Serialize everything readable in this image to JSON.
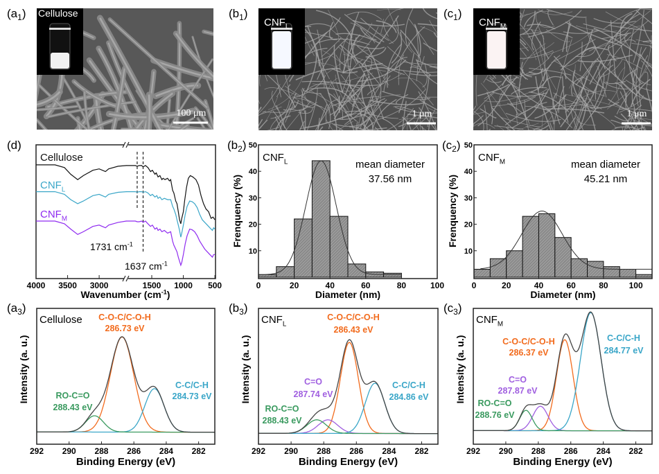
{
  "panels": {
    "a1": {
      "label": "a",
      "sub": "1",
      "title_main": "Cellulose",
      "title_sub": "",
      "scale_bar": "100 μm"
    },
    "b1": {
      "label": "b",
      "sub": "1",
      "title_main": "CNF",
      "title_sub": "L",
      "scale_bar": "1 μm"
    },
    "c1": {
      "label": "c",
      "sub": "1",
      "title_main": "CNF",
      "title_sub": "M",
      "scale_bar": "1 μm"
    }
  },
  "colors": {
    "cellulose": "#111111",
    "cnf_l": "#3aa6c8",
    "cnf_m": "#8f2bf0",
    "orange": "#f26b1d",
    "teal": "#3aa6c8",
    "green": "#3a9a5f",
    "purple": "#a05fe0",
    "envelope": "#444444",
    "bar_fill": "#9a9a9a"
  },
  "chart_data": [
    {
      "type": "line",
      "panel_label": "d",
      "panel_sub": "",
      "xlabel_main": "Wavenumber (cm",
      "xlabel_sup": "-1",
      "xlabel_end": ")",
      "ylabel": "",
      "x_reversed": true,
      "x_break": [
        2570,
        1906
      ],
      "xlim": [
        4000,
        500
      ],
      "xticks": [
        4000,
        3500,
        3000,
        1500,
        1000,
        500
      ],
      "xtick_labels": [
        "4000",
        "3500",
        "3000",
        "1500",
        "1000",
        "500"
      ],
      "ylim": [
        0,
        100
      ],
      "series": [
        {
          "name_main": "Cellulose",
          "name_sub": "",
          "color": "#111111",
          "points": [
            [
              4000,
              85
            ],
            [
              3700,
              85
            ],
            [
              3550,
              83
            ],
            [
              3450,
              78
            ],
            [
              3340,
              74
            ],
            [
              3250,
              77
            ],
            [
              3100,
              81
            ],
            [
              3000,
              82
            ],
            [
              2900,
              80
            ],
            [
              2850,
              82
            ],
            [
              2700,
              84
            ],
            [
              2570,
              84.5
            ],
            [
              1906,
              84.5
            ],
            [
              1760,
              84.5
            ],
            [
              1731,
              84
            ],
            [
              1700,
              84.5
            ],
            [
              1660,
              84.5
            ],
            [
              1637,
              83.5
            ],
            [
              1600,
              84.5
            ],
            [
              1560,
              83
            ],
            [
              1520,
              80
            ],
            [
              1490,
              81
            ],
            [
              1450,
              78
            ],
            [
              1430,
              79
            ],
            [
              1400,
              76
            ],
            [
              1370,
              77
            ],
            [
              1340,
              74
            ],
            [
              1320,
              75
            ],
            [
              1290,
              74
            ],
            [
              1250,
              75
            ],
            [
              1220,
              73
            ],
            [
              1200,
              74
            ],
            [
              1170,
              66
            ],
            [
              1150,
              64
            ],
            [
              1120,
              58
            ],
            [
              1100,
              56
            ],
            [
              1080,
              50
            ],
            [
              1060,
              44
            ],
            [
              1040,
              41
            ],
            [
              1025,
              45
            ],
            [
              1000,
              50
            ],
            [
              980,
              58
            ],
            [
              950,
              68
            ],
            [
              920,
              75
            ],
            [
              890,
              77
            ],
            [
              850,
              76
            ],
            [
              800,
              74
            ],
            [
              760,
              70
            ],
            [
              720,
              62
            ],
            [
              680,
              56
            ],
            [
              640,
              52
            ],
            [
              600,
              50
            ],
            [
              560,
              45
            ],
            [
              530,
              46
            ],
            [
              500,
              44
            ]
          ]
        },
        {
          "name_main": "CNF",
          "name_sub": "L",
          "color": "#3aa6c8",
          "points": [
            [
              4000,
              65
            ],
            [
              3700,
              65
            ],
            [
              3550,
              63
            ],
            [
              3450,
              59
            ],
            [
              3340,
              56
            ],
            [
              3250,
              58
            ],
            [
              3100,
              62
            ],
            [
              3000,
              63
            ],
            [
              2900,
              61
            ],
            [
              2850,
              63
            ],
            [
              2700,
              64.5
            ],
            [
              2570,
              65
            ],
            [
              1906,
              65
            ],
            [
              1760,
              65
            ],
            [
              1731,
              64.5
            ],
            [
              1700,
              65
            ],
            [
              1660,
              65
            ],
            [
              1637,
              64.5
            ],
            [
              1600,
              65
            ],
            [
              1560,
              64
            ],
            [
              1520,
              62
            ],
            [
              1490,
              63
            ],
            [
              1450,
              61
            ],
            [
              1420,
              62
            ],
            [
              1400,
              60
            ],
            [
              1370,
              61
            ],
            [
              1340,
              59
            ],
            [
              1300,
              60
            ],
            [
              1250,
              59
            ],
            [
              1200,
              59
            ],
            [
              1170,
              54
            ],
            [
              1150,
              52
            ],
            [
              1120,
              48
            ],
            [
              1100,
              44
            ],
            [
              1080,
              40
            ],
            [
              1060,
              36
            ],
            [
              1040,
              31
            ],
            [
              1025,
              34
            ],
            [
              1000,
              40
            ],
            [
              970,
              48
            ],
            [
              940,
              54
            ],
            [
              900,
              58
            ],
            [
              860,
              57.5
            ],
            [
              820,
              56
            ],
            [
              780,
              53
            ],
            [
              740,
              48
            ],
            [
              700,
              44
            ],
            [
              660,
              42
            ],
            [
              620,
              40
            ],
            [
              580,
              38
            ],
            [
              540,
              36
            ],
            [
              520,
              38
            ],
            [
              500,
              37
            ]
          ]
        },
        {
          "name_main": "CNF",
          "name_sub": "M",
          "color": "#8f2bf0",
          "points": [
            [
              4000,
              43
            ],
            [
              3700,
              43
            ],
            [
              3550,
              41
            ],
            [
              3450,
              37
            ],
            [
              3340,
              33
            ],
            [
              3250,
              35
            ],
            [
              3100,
              39
            ],
            [
              3000,
              40
            ],
            [
              2900,
              38
            ],
            [
              2850,
              40
            ],
            [
              2700,
              42
            ],
            [
              2570,
              43
            ],
            [
              1906,
              43
            ],
            [
              1760,
              43
            ],
            [
              1731,
              42.5
            ],
            [
              1700,
              42.5
            ],
            [
              1660,
              43
            ],
            [
              1637,
              42
            ],
            [
              1600,
              43
            ],
            [
              1560,
              41
            ],
            [
              1520,
              39
            ],
            [
              1490,
              40
            ],
            [
              1450,
              37
            ],
            [
              1420,
              38
            ],
            [
              1400,
              36
            ],
            [
              1370,
              37
            ],
            [
              1340,
              35
            ],
            [
              1300,
              36
            ],
            [
              1250,
              34
            ],
            [
              1200,
              35
            ],
            [
              1170,
              28
            ],
            [
              1150,
              25
            ],
            [
              1120,
              22
            ],
            [
              1100,
              20
            ],
            [
              1080,
              16
            ],
            [
              1060,
              13
            ],
            [
              1040,
              10
            ],
            [
              1025,
              12
            ],
            [
              1000,
              18
            ],
            [
              970,
              26
            ],
            [
              940,
              32
            ],
            [
              900,
              37
            ],
            [
              860,
              36.5
            ],
            [
              820,
              35
            ],
            [
              780,
              32
            ],
            [
              740,
              28
            ],
            [
              700,
              25
            ],
            [
              660,
              22
            ],
            [
              620,
              20
            ],
            [
              580,
              18
            ],
            [
              540,
              16
            ],
            [
              520,
              18
            ],
            [
              500,
              18
            ]
          ]
        }
      ],
      "annotations": [
        {
          "text": "1731 cm",
          "sup": "-1",
          "x": 1731
        },
        {
          "text": "1637 cm",
          "sup": "-1",
          "x": 1637
        }
      ]
    },
    {
      "type": "bar",
      "panel_label": "b",
      "panel_sub": "2",
      "sample_main": "CNF",
      "sample_sub": "L",
      "annotation_line1": "mean diameter",
      "annotation_line2": "37.56 nm",
      "xlabel": "Diameter (nm)",
      "ylabel": "Frenquency (%)",
      "xlim": [
        0,
        100
      ],
      "ylim": [
        0,
        50
      ],
      "xticks": [
        0,
        20,
        40,
        60,
        80,
        100
      ],
      "xtick_labels": [
        "0",
        "20",
        "40",
        "60",
        "80",
        "100"
      ],
      "yticks": [
        10,
        20,
        30,
        40,
        50
      ],
      "ytick_labels": [
        "10",
        "20",
        "30",
        "40",
        "50"
      ],
      "bin_edges": [
        0,
        10,
        20,
        30,
        40,
        50,
        60,
        70,
        80
      ],
      "values": [
        1,
        4,
        22,
        44,
        23,
        5,
        2,
        1.5
      ],
      "fit": "gaussian"
    },
    {
      "type": "bar",
      "panel_label": "c",
      "panel_sub": "2",
      "sample_main": "CNF",
      "sample_sub": "M",
      "annotation_line1": "mean diameter",
      "annotation_line2": "45.21 nm",
      "xlabel": "Diameter (nm)",
      "ylabel": "Frenquency (%)",
      "xlim": [
        0,
        110
      ],
      "ylim": [
        0,
        50
      ],
      "xticks": [
        0,
        20,
        40,
        60,
        80,
        100
      ],
      "xtick_labels": [
        "0",
        "20",
        "40",
        "60",
        "80",
        "100"
      ],
      "yticks": [
        10,
        20,
        30,
        40,
        50
      ],
      "ytick_labels": [
        "10",
        "20",
        "30",
        "40",
        "50"
      ],
      "bin_edges": [
        0,
        10,
        20,
        30,
        40,
        50,
        60,
        70,
        80,
        90,
        100,
        110
      ],
      "values": [
        3,
        7,
        10,
        23,
        24,
        15,
        7,
        6,
        4,
        3,
        1
      ],
      "fit": "gaussian"
    },
    {
      "type": "line",
      "panel_label": "a",
      "panel_sub": "3",
      "sample_main": "Cellulose",
      "sample_sub": "",
      "xlabel": "Binding Energy (eV)",
      "ylabel": "Intensity (a. u.)",
      "xlim": [
        292,
        281
      ],
      "x_reversed": true,
      "ylim": [
        0,
        100
      ],
      "xticks": [
        292,
        290,
        288,
        286,
        284,
        282
      ],
      "xtick_labels": [
        "292",
        "290",
        "288",
        "286",
        "284",
        "282"
      ],
      "baseline": 9,
      "components": [
        {
          "name": "C-O-C/C-O-H",
          "energy_label": "286.73 eV",
          "center": 286.73,
          "height": 70,
          "fwhm": 1.7,
          "color": "#f26b1d"
        },
        {
          "name": "C-C/C-H",
          "energy_label": "284.73 eV",
          "center": 284.73,
          "height": 32,
          "fwhm": 1.4,
          "color": "#3aa6c8"
        },
        {
          "name": "RO-C=O",
          "energy_label": "288.43 eV",
          "center": 288.43,
          "height": 12,
          "fwhm": 1.3,
          "color": "#3a9a5f"
        }
      ]
    },
    {
      "type": "line",
      "panel_label": "b",
      "panel_sub": "3",
      "sample_main": "CNF",
      "sample_sub": "L",
      "xlabel": "Binding Energy (eV)",
      "ylabel": "Intensity (a. u.)",
      "xlim": [
        292,
        281
      ],
      "x_reversed": true,
      "ylim": [
        0,
        100
      ],
      "xticks": [
        292,
        290,
        288,
        286,
        284,
        282
      ],
      "xtick_labels": [
        "292",
        "290",
        "288",
        "286",
        "284",
        "282"
      ],
      "baseline": 8,
      "components": [
        {
          "name": "C-O-C/C-O-H",
          "energy_label": "286.43 eV",
          "center": 286.43,
          "height": 67,
          "fwhm": 1.3,
          "color": "#f26b1d"
        },
        {
          "name": "C=O",
          "energy_label": "287.74 eV",
          "center": 287.74,
          "height": 10,
          "fwhm": 1.4,
          "color": "#a05fe0"
        },
        {
          "name": "C-C/C-H",
          "energy_label": "284.86 eV",
          "center": 284.86,
          "height": 37,
          "fwhm": 1.4,
          "color": "#3aa6c8"
        },
        {
          "name": "RO-C=O",
          "energy_label": "288.43 eV",
          "center": 288.43,
          "height": 10,
          "fwhm": 1.4,
          "color": "#3a9a5f"
        }
      ]
    },
    {
      "type": "line",
      "panel_label": "c",
      "panel_sub": "3",
      "sample_main": "CNF",
      "sample_sub": "M",
      "xlabel": "Binding Energy (eV)",
      "ylabel": "Intensity (a. u.)",
      "xlim": [
        292,
        281
      ],
      "x_reversed": true,
      "ylim": [
        0,
        100
      ],
      "xticks": [
        292,
        290,
        288,
        286,
        284,
        282
      ],
      "xtick_labels": [
        "292",
        "290",
        "288",
        "286",
        "284",
        "282"
      ],
      "baseline": 10,
      "components": [
        {
          "name": "C-O-C/C-O-H",
          "energy_label": "286.37 eV",
          "center": 286.37,
          "height": 67,
          "fwhm": 1.2,
          "color": "#f26b1d"
        },
        {
          "name": "C=O",
          "energy_label": "287.87 eV",
          "center": 287.87,
          "height": 18,
          "fwhm": 1.1,
          "color": "#a05fe0"
        },
        {
          "name": "C-C/C-H",
          "energy_label": "284.77 eV",
          "center": 284.77,
          "height": 87,
          "fwhm": 1.5,
          "color": "#3aa6c8"
        },
        {
          "name": "RO-C=O",
          "energy_label": "288.76 eV",
          "center": 288.76,
          "height": 15,
          "fwhm": 0.9,
          "color": "#3a9a5f"
        }
      ]
    }
  ]
}
